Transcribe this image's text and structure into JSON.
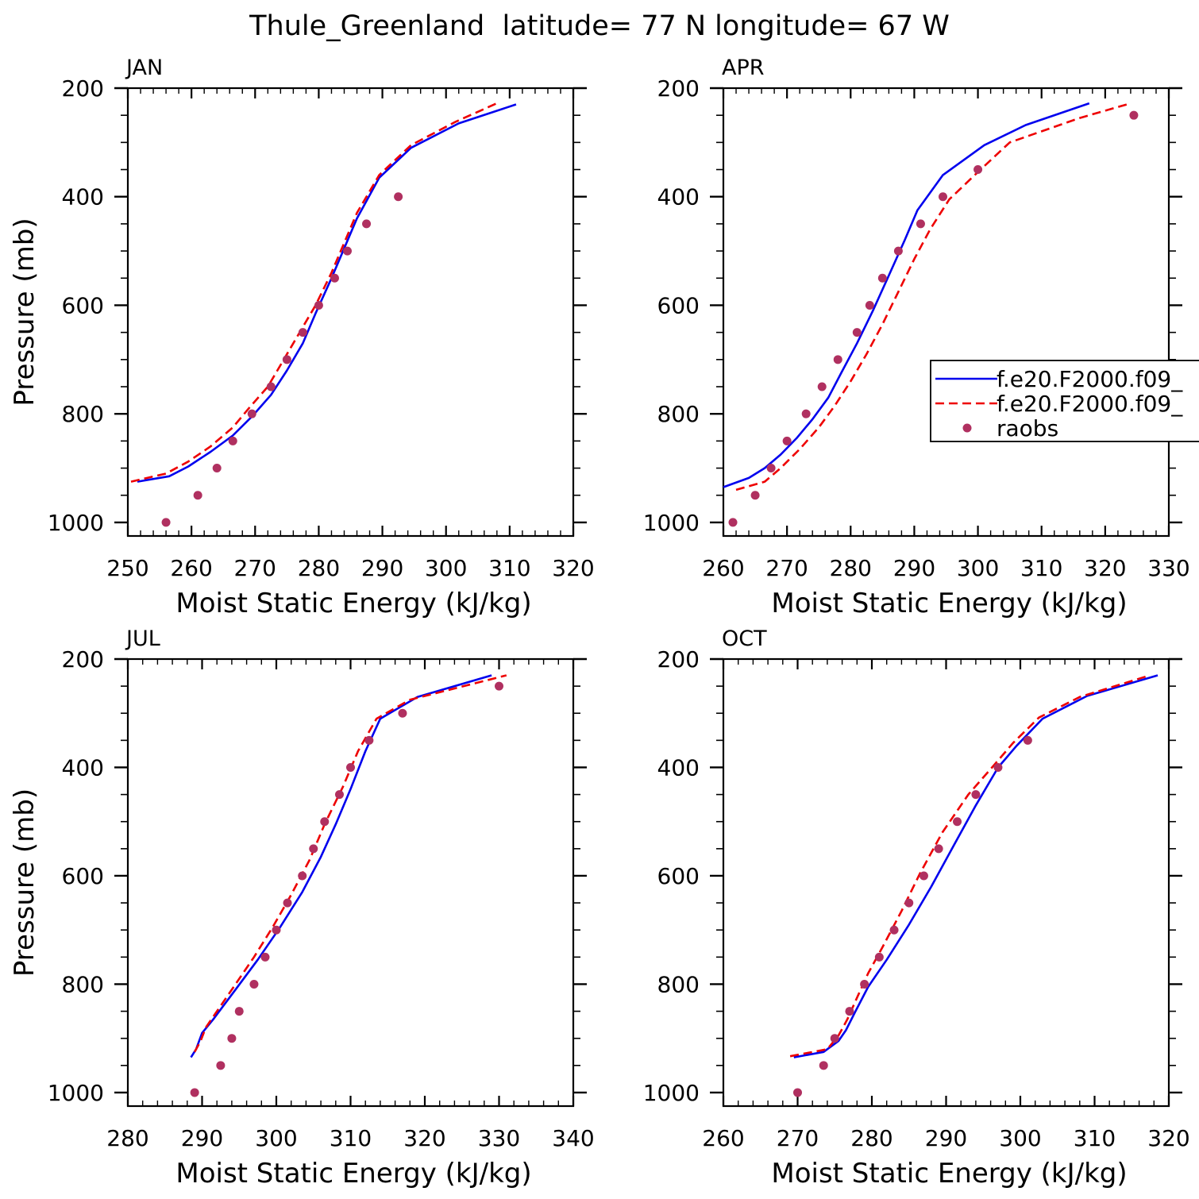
{
  "figure_title": "Thule_Greenland  latitude= 77 N longitude= 67 W",
  "legend": {
    "entries": [
      {
        "label": "f.e20.F2000.f09_",
        "style": "solid",
        "color": "#0000ee"
      },
      {
        "label": "f.e20.F2000.f09_",
        "style": "dashed",
        "color": "#ee0000"
      },
      {
        "label": "raobs",
        "style": "dots",
        "color": "#b03060"
      }
    ]
  },
  "chart_data": [
    {
      "type": "line",
      "panel_label": "JAN",
      "xlabel": "Moist Static Energy (kJ/kg)",
      "ylabel": "Pressure (mb)",
      "xlim": [
        250,
        320
      ],
      "ylim": [
        1025,
        200
      ],
      "xticks": [
        250,
        260,
        270,
        280,
        290,
        300,
        310,
        320
      ],
      "yticks": [
        200,
        400,
        600,
        800,
        1000
      ],
      "series": [
        {
          "x": [
            251.5,
            256.5,
            259.5,
            263,
            266.5,
            269.5,
            272.5,
            275,
            277.5,
            279.5,
            282,
            286,
            289.5,
            294.5,
            302,
            311
          ],
          "y": [
            925,
            915,
            897,
            870,
            840,
            805,
            765,
            720,
            670,
            615,
            550,
            440,
            365,
            310,
            265,
            230
          ]
        },
        {
          "x": [
            250.5,
            256,
            259.5,
            263,
            266.5,
            269,
            272,
            274.5,
            277,
            279.5,
            282,
            286,
            289.5,
            294.5,
            301.5,
            308
          ],
          "y": [
            925,
            910,
            888,
            860,
            825,
            790,
            750,
            700,
            650,
            600,
            540,
            430,
            360,
            305,
            262,
            228
          ]
        },
        {
          "x": [
            256,
            261,
            264,
            266.5,
            269.5,
            272.5,
            275,
            277.5,
            280,
            282.5,
            284.5,
            287.5,
            292.5
          ],
          "y": [
            1000,
            950,
            900,
            850,
            800,
            750,
            700,
            650,
            600,
            550,
            500,
            450,
            400
          ]
        }
      ]
    },
    {
      "type": "line",
      "panel_label": "APR",
      "xlabel": "Moist Static Energy (kJ/kg)",
      "ylabel": "",
      "xlim": [
        260,
        330
      ],
      "ylim": [
        1025,
        200
      ],
      "xticks": [
        260,
        270,
        280,
        290,
        300,
        310,
        320,
        330
      ],
      "yticks": [
        200,
        400,
        600,
        800,
        1000
      ],
      "series": [
        {
          "x": [
            260,
            264,
            266.5,
            269,
            271.5,
            274,
            276.5,
            278.5,
            281,
            283.5,
            286,
            288.5,
            290.5,
            294.5,
            301,
            307.5,
            317.5
          ],
          "y": [
            935,
            918,
            900,
            875,
            845,
            810,
            770,
            725,
            670,
            610,
            545,
            480,
            425,
            360,
            305,
            268,
            228
          ]
        },
        {
          "x": [
            262,
            266.5,
            269,
            272,
            275,
            277.5,
            280,
            282.5,
            285,
            287.5,
            290,
            292.5,
            295.5,
            299.5,
            305,
            316,
            324
          ],
          "y": [
            940,
            925,
            900,
            865,
            825,
            785,
            740,
            690,
            635,
            575,
            515,
            460,
            405,
            360,
            300,
            255,
            228
          ]
        },
        {
          "x": [
            261.5,
            265,
            267.5,
            270,
            273,
            275.5,
            278,
            281,
            283,
            285,
            287.5,
            291,
            294.5,
            300,
            324.5
          ],
          "y": [
            1000,
            950,
            900,
            850,
            800,
            750,
            700,
            650,
            600,
            550,
            500,
            450,
            400,
            350,
            250
          ]
        }
      ]
    },
    {
      "type": "line",
      "panel_label": "JUL",
      "xlabel": "Moist Static Energy (kJ/kg)",
      "ylabel": "Pressure (mb)",
      "xlim": [
        280,
        340
      ],
      "ylim": [
        1025,
        200
      ],
      "xticks": [
        280,
        290,
        300,
        310,
        320,
        330,
        340
      ],
      "yticks": [
        200,
        400,
        600,
        800,
        1000
      ],
      "series": [
        {
          "x": [
            288.5,
            289.2,
            290,
            291.5,
            294.5,
            297.5,
            300.5,
            303.5,
            306,
            308,
            310,
            312,
            314,
            319,
            329
          ],
          "y": [
            935,
            920,
            890,
            865,
            810,
            755,
            695,
            630,
            565,
            505,
            440,
            370,
            310,
            270,
            230
          ]
        },
        {
          "x": [
            289,
            289.8,
            290.5,
            292,
            294.5,
            297,
            299.5,
            302,
            304.5,
            306.5,
            309,
            311,
            313.5,
            318,
            331
          ],
          "y": [
            925,
            905,
            880,
            850,
            800,
            750,
            695,
            635,
            570,
            505,
            435,
            370,
            310,
            275,
            230
          ]
        },
        {
          "x": [
            289,
            292.5,
            294,
            295,
            297,
            298.5,
            300,
            301.5,
            303.5,
            305,
            306.5,
            308.5,
            310,
            312.5,
            317,
            330
          ],
          "y": [
            1000,
            950,
            900,
            850,
            800,
            750,
            700,
            650,
            600,
            550,
            500,
            450,
            400,
            350,
            300,
            250
          ]
        }
      ]
    },
    {
      "type": "line",
      "panel_label": "OCT",
      "xlabel": "Moist Static Energy (kJ/kg)",
      "ylabel": "",
      "xlim": [
        260,
        320
      ],
      "ylim": [
        1025,
        200
      ],
      "xticks": [
        260,
        270,
        280,
        290,
        300,
        310,
        320
      ],
      "yticks": [
        200,
        400,
        600,
        800,
        1000
      ],
      "series": [
        {
          "x": [
            269.5,
            273.5,
            275.5,
            276.5,
            277.8,
            279.5,
            282,
            285,
            288,
            291,
            294,
            297,
            299.5,
            303,
            309,
            318.5
          ],
          "y": [
            935,
            925,
            905,
            885,
            850,
            805,
            755,
            690,
            620,
            545,
            470,
            400,
            360,
            310,
            268,
            230
          ]
        },
        {
          "x": [
            269,
            274,
            275.5,
            276.7,
            278,
            279.5,
            281.5,
            284,
            286.5,
            289.5,
            293,
            296.5,
            299,
            302.5,
            308,
            317
          ],
          "y": [
            933,
            920,
            895,
            865,
            825,
            780,
            730,
            665,
            595,
            520,
            450,
            395,
            355,
            308,
            270,
            232
          ]
        },
        {
          "x": [
            270,
            273.5,
            275,
            277,
            279,
            281,
            283,
            285,
            287,
            289,
            291.5,
            294,
            297,
            301
          ],
          "y": [
            1000,
            950,
            900,
            850,
            800,
            750,
            700,
            650,
            600,
            550,
            500,
            450,
            400,
            350
          ]
        }
      ]
    }
  ]
}
